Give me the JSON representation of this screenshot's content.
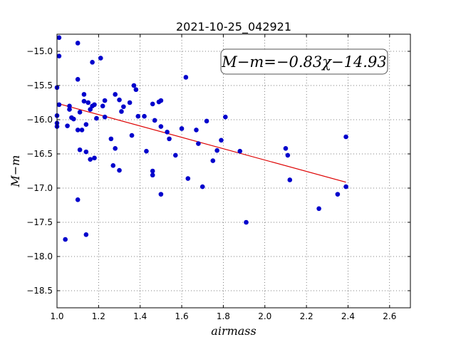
{
  "chart_data": {
    "type": "scatter",
    "title": "2021-10-25_042921",
    "xlabel": "airmass",
    "ylabel": "M−m",
    "xlim": [
      1.0,
      2.7
    ],
    "ylim": [
      -18.75,
      -14.75
    ],
    "xticks": [
      "1.0",
      "1.2",
      "1.4",
      "1.6",
      "1.8",
      "2.0",
      "2.2",
      "2.4",
      "2.6"
    ],
    "yticks": [
      "−15.0",
      "−15.5",
      "−16.0",
      "−16.5",
      "−17.0",
      "−17.5",
      "−18.0",
      "−18.5"
    ],
    "grid": true,
    "annotation": "M−m=−0.83χ−14.93",
    "colors": {
      "points": "#0000cc",
      "fit_line": "#dd0000"
    },
    "fit": {
      "slope": -0.83,
      "intercept": -14.93,
      "x_range": [
        1.0,
        2.39
      ]
    },
    "points": [
      [
        1.0,
        -15.53
      ],
      [
        1.0,
        -15.94
      ],
      [
        1.0,
        -16.05
      ],
      [
        1.0,
        -16.1
      ],
      [
        1.01,
        -14.8
      ],
      [
        1.01,
        -15.07
      ],
      [
        1.01,
        -15.78
      ],
      [
        1.04,
        -17.75
      ],
      [
        1.05,
        -16.09
      ],
      [
        1.06,
        -15.85
      ],
      [
        1.06,
        -15.8
      ],
      [
        1.07,
        -15.97
      ],
      [
        1.08,
        -15.99
      ],
      [
        1.1,
        -14.88
      ],
      [
        1.1,
        -15.41
      ],
      [
        1.1,
        -16.15
      ],
      [
        1.1,
        -17.17
      ],
      [
        1.11,
        -15.89
      ],
      [
        1.11,
        -16.44
      ],
      [
        1.12,
        -16.15
      ],
      [
        1.13,
        -15.63
      ],
      [
        1.13,
        -15.73
      ],
      [
        1.14,
        -16.47
      ],
      [
        1.14,
        -17.68
      ],
      [
        1.14,
        -16.07
      ],
      [
        1.15,
        -15.75
      ],
      [
        1.16,
        -15.85
      ],
      [
        1.16,
        -16.58
      ],
      [
        1.17,
        -15.16
      ],
      [
        1.17,
        -15.8
      ],
      [
        1.18,
        -15.78
      ],
      [
        1.18,
        -16.56
      ],
      [
        1.19,
        -15.98
      ],
      [
        1.21,
        -15.1
      ],
      [
        1.22,
        -15.8
      ],
      [
        1.23,
        -15.72
      ],
      [
        1.23,
        -15.96
      ],
      [
        1.26,
        -16.28
      ],
      [
        1.27,
        -16.67
      ],
      [
        1.28,
        -15.63
      ],
      [
        1.28,
        -16.42
      ],
      [
        1.3,
        -16.74
      ],
      [
        1.3,
        -15.71
      ],
      [
        1.31,
        -15.88
      ],
      [
        1.32,
        -15.81
      ],
      [
        1.35,
        -15.75
      ],
      [
        1.36,
        -16.23
      ],
      [
        1.37,
        -15.5
      ],
      [
        1.38,
        -15.56
      ],
      [
        1.39,
        -15.95
      ],
      [
        1.42,
        -15.95
      ],
      [
        1.43,
        -16.46
      ],
      [
        1.46,
        -16.81
      ],
      [
        1.46,
        -15.77
      ],
      [
        1.46,
        -16.75
      ],
      [
        1.47,
        -16.01
      ],
      [
        1.49,
        -15.74
      ],
      [
        1.5,
        -17.09
      ],
      [
        1.5,
        -15.72
      ],
      [
        1.5,
        -16.1
      ],
      [
        1.53,
        -16.18
      ],
      [
        1.54,
        -16.28
      ],
      [
        1.57,
        -16.52
      ],
      [
        1.6,
        -16.13
      ],
      [
        1.62,
        -15.38
      ],
      [
        1.63,
        -16.86
      ],
      [
        1.67,
        -16.15
      ],
      [
        1.68,
        -16.35
      ],
      [
        1.7,
        -16.98
      ],
      [
        1.72,
        -16.02
      ],
      [
        1.75,
        -16.6
      ],
      [
        1.77,
        -16.45
      ],
      [
        1.79,
        -16.3
      ],
      [
        1.81,
        -15.96
      ],
      [
        1.88,
        -16.46
      ],
      [
        1.91,
        -17.5
      ],
      [
        2.1,
        -16.42
      ],
      [
        2.11,
        -16.52
      ],
      [
        2.12,
        -16.88
      ],
      [
        2.26,
        -17.3
      ],
      [
        2.35,
        -17.09
      ],
      [
        2.39,
        -16.98
      ],
      [
        2.39,
        -16.25
      ]
    ]
  }
}
